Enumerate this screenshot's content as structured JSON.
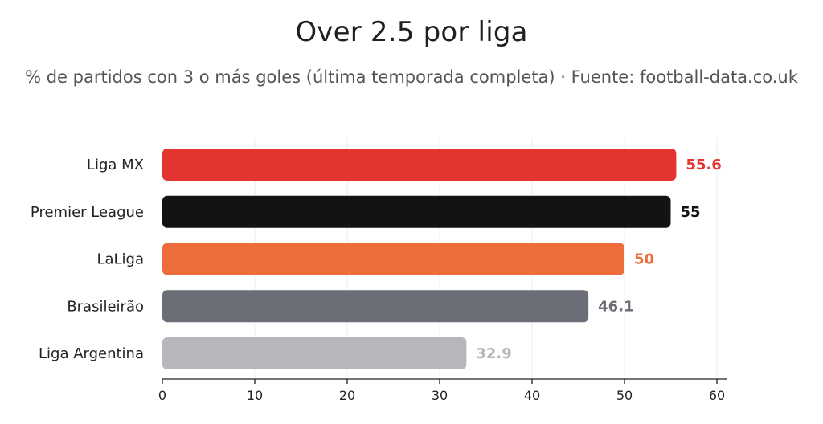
{
  "header": {
    "title": "Over 2.5 por liga",
    "subtitle": "% de partidos con 3 o más goles (última temporada completa) · Fuente: football-data.co.uk"
  },
  "chart_data": {
    "type": "bar",
    "orientation": "horizontal",
    "title": "Over 2.5 por liga",
    "subtitle": "% de partidos con 3 o más goles (última temporada completa) · Fuente: football-data.co.uk",
    "categories": [
      "Liga MX",
      "Premier League",
      "LaLiga",
      "Brasileirão",
      "Liga Argentina"
    ],
    "values": [
      55.6,
      55,
      50,
      46.1,
      32.9
    ],
    "value_labels": [
      "55.6",
      "55",
      "50",
      "46.1",
      "32.9"
    ],
    "colors": [
      "#e3342f",
      "#121314",
      "#ef6c3d",
      "#6b6e77",
      "#b5b7bd"
    ],
    "xlim": [
      0,
      60
    ],
    "xticks": [
      0,
      10,
      20,
      30,
      40,
      50,
      60
    ],
    "xtick_labels": [
      "0",
      "10",
      "20",
      "30",
      "40",
      "50",
      "60"
    ],
    "xlabel": "",
    "ylabel": "",
    "grid": "vertical"
  }
}
